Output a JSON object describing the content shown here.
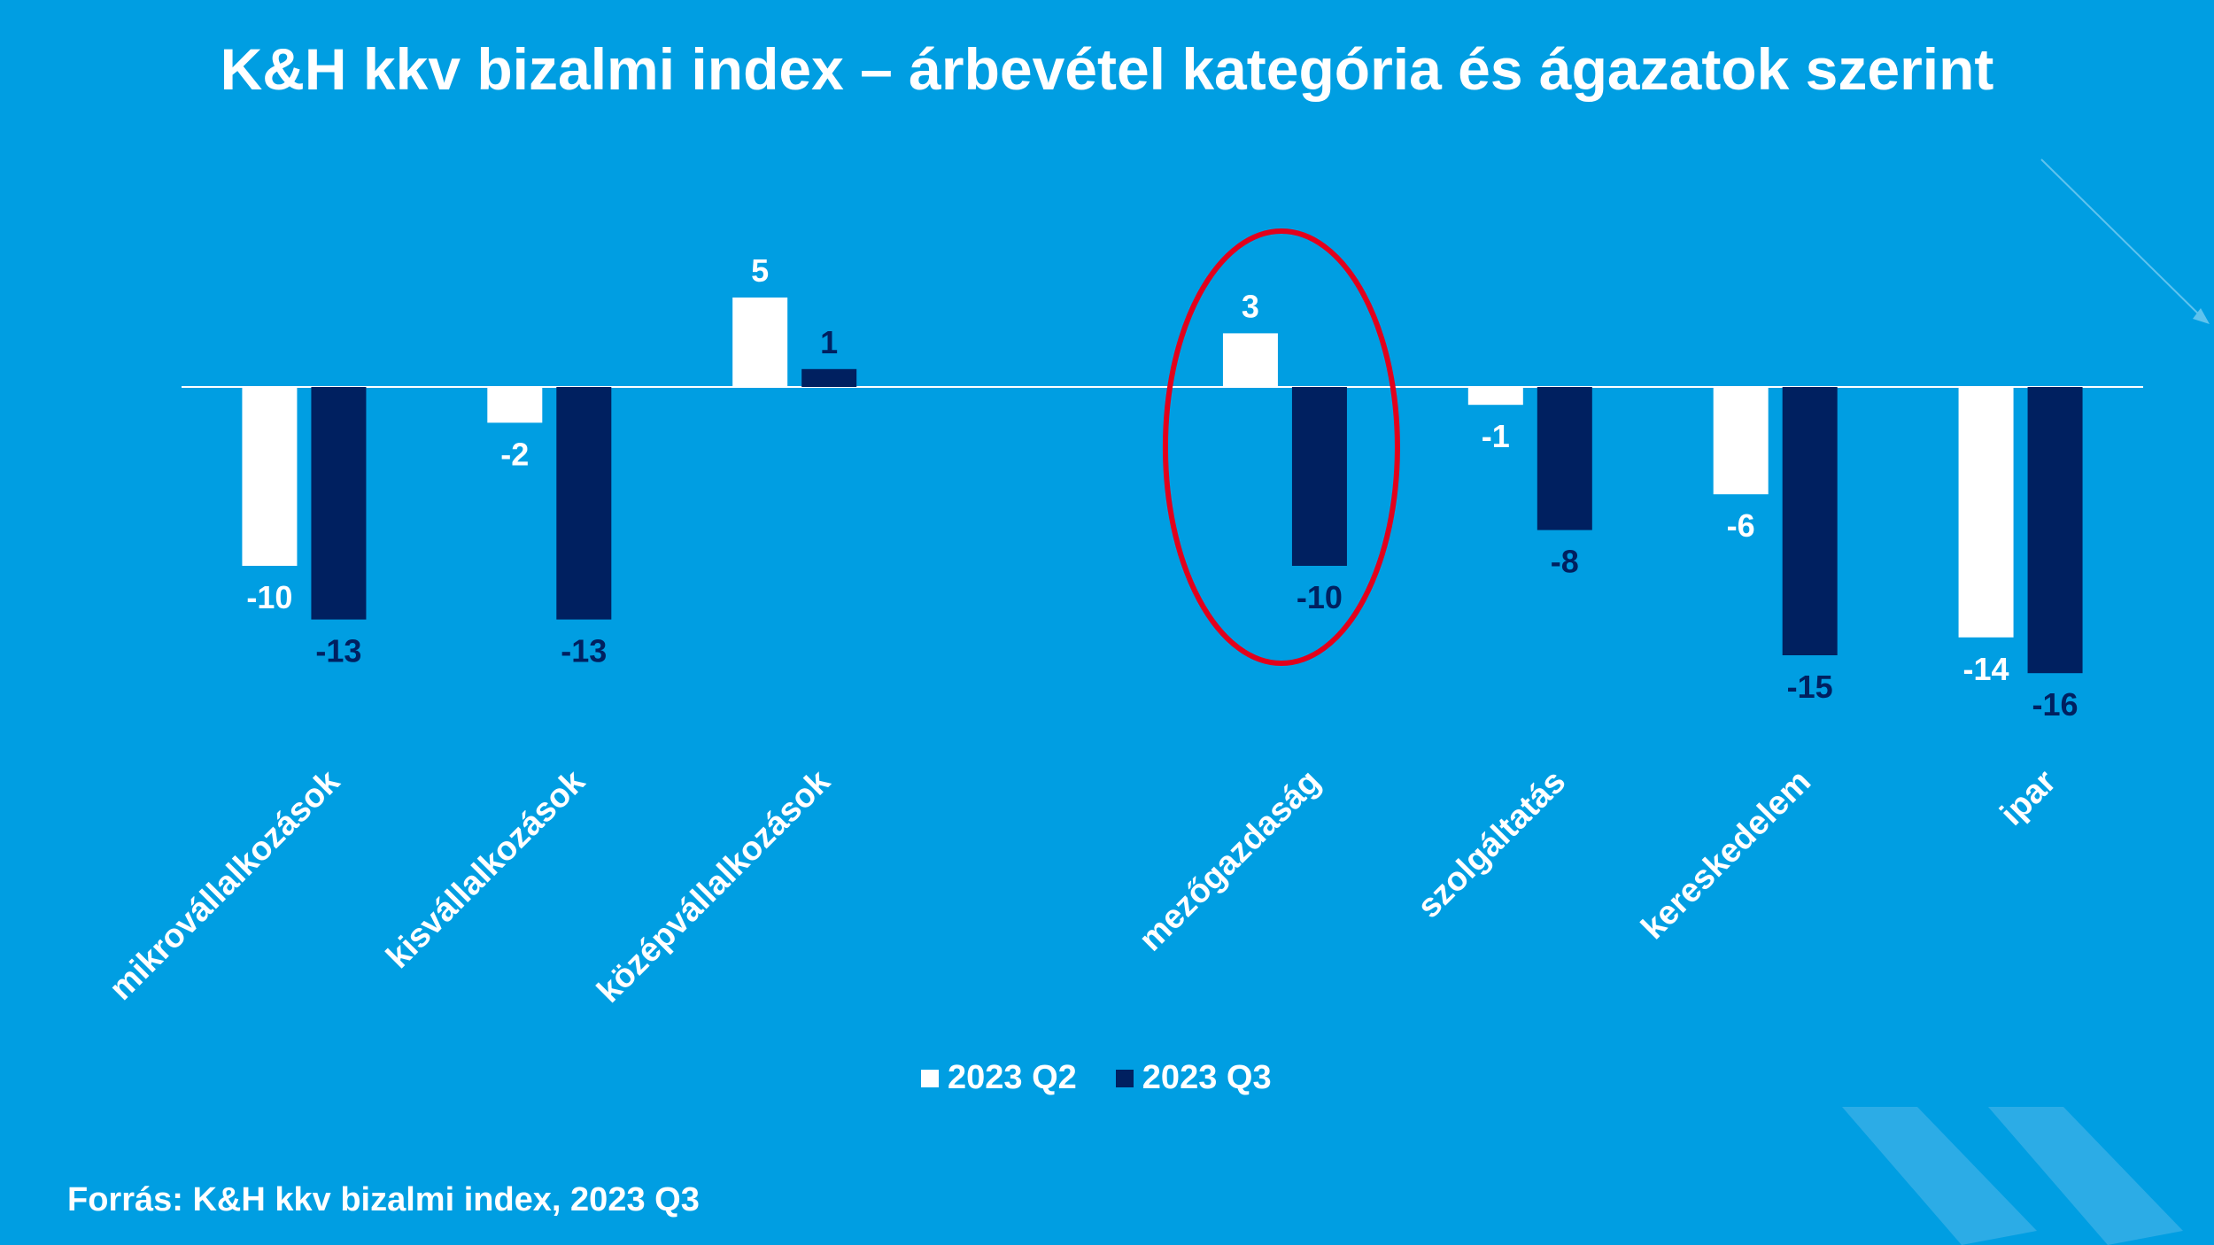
{
  "title": "K&H kkv bizalmi index – árbevétel kategória és ágazatok szerint",
  "source": "Forrás: K&H kkv bizalmi index, 2023  Q3",
  "colors": {
    "background": "#009ee2",
    "q2": "#ffffff",
    "q3": "#002060",
    "highlight": "#e3001b"
  },
  "highlight_category": "mezőgazdaság",
  "chart_data": {
    "type": "bar",
    "title": "K&H kkv bizalmi index – árbevétel kategória és ágazatok szerint",
    "categories": [
      "mikrovállalkozások",
      "kisvállalkozások",
      "középvállalkozások",
      "",
      "mezőgazdaság",
      "szolgáltatás",
      "kereskedelem",
      "ipar"
    ],
    "series": [
      {
        "name": "2023 Q2",
        "values": [
          -10,
          -2,
          5,
          null,
          3,
          -1,
          -6,
          -14
        ]
      },
      {
        "name": "2023 Q3",
        "values": [
          -13,
          -13,
          1,
          null,
          -10,
          -8,
          -15,
          -16
        ]
      }
    ],
    "xlabel": "",
    "ylabel": "",
    "ylim": [
      -16,
      5
    ],
    "grid": false,
    "legend": "bottom"
  }
}
